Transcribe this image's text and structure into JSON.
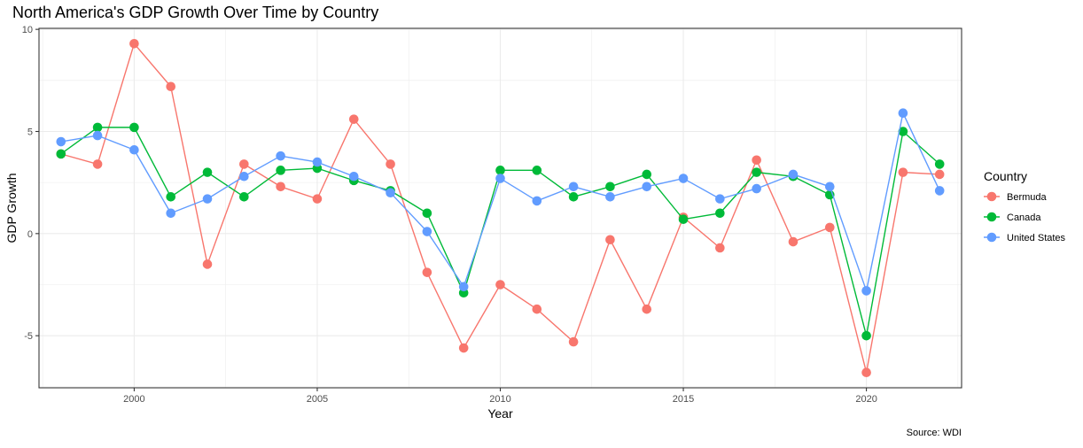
{
  "chart_data": {
    "type": "line",
    "title": "North America's GDP Growth Over Time by Country",
    "xlabel": "Year",
    "ylabel": "GDP Growth",
    "caption": "Source: WDI",
    "legend_title": "Country",
    "legend_position": "right",
    "grid": true,
    "xlim": [
      1997.4,
      2022.6
    ],
    "ylim": [
      -7.55,
      10.05
    ],
    "x_ticks": [
      2000,
      2005,
      2010,
      2015,
      2020
    ],
    "y_ticks": [
      -5,
      0,
      5,
      10
    ],
    "x": [
      1998,
      1999,
      2000,
      2001,
      2002,
      2003,
      2004,
      2005,
      2006,
      2007,
      2008,
      2009,
      2010,
      2011,
      2012,
      2013,
      2014,
      2015,
      2016,
      2017,
      2018,
      2019,
      2020,
      2021,
      2022
    ],
    "series": [
      {
        "name": "Bermuda",
        "color": "#F8766D",
        "values": [
          3.9,
          3.4,
          9.3,
          7.2,
          -1.5,
          3.4,
          2.3,
          1.7,
          5.6,
          3.4,
          -1.9,
          -5.6,
          -2.5,
          -3.7,
          -5.3,
          -0.3,
          -3.7,
          0.8,
          -0.7,
          3.6,
          -0.4,
          0.3,
          -6.8,
          3.0,
          2.9
        ]
      },
      {
        "name": "Canada",
        "color": "#00BA38",
        "values": [
          3.9,
          5.2,
          5.2,
          1.8,
          3.0,
          1.8,
          3.1,
          3.2,
          2.6,
          2.1,
          1.0,
          -2.9,
          3.1,
          3.1,
          1.8,
          2.3,
          2.9,
          0.7,
          1.0,
          3.0,
          2.8,
          1.9,
          -5.0,
          5.0,
          3.4
        ]
      },
      {
        "name": "United States",
        "color": "#619CFF",
        "values": [
          4.5,
          4.8,
          4.1,
          1.0,
          1.7,
          2.8,
          3.8,
          3.5,
          2.8,
          2.0,
          0.1,
          -2.6,
          2.7,
          1.6,
          2.3,
          1.8,
          2.3,
          2.7,
          1.7,
          2.2,
          2.9,
          2.3,
          -2.8,
          5.9,
          2.1
        ]
      }
    ]
  }
}
